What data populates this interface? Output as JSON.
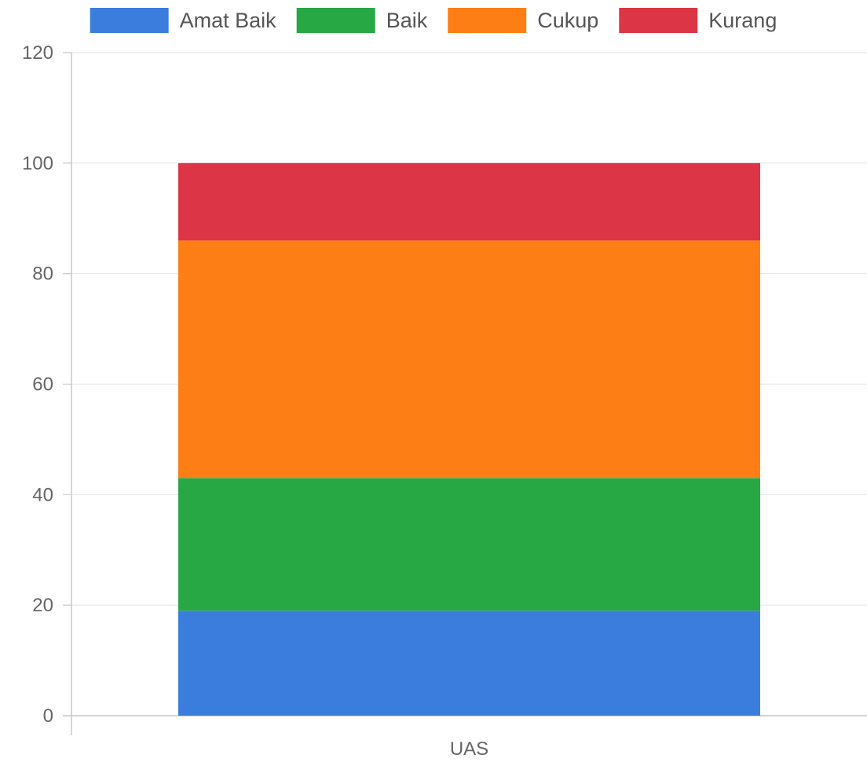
{
  "chart_data": {
    "type": "bar",
    "stacked": true,
    "categories": [
      "UAS"
    ],
    "series": [
      {
        "name": "Amat Baik",
        "values": [
          19
        ],
        "color": "#3b7ddd"
      },
      {
        "name": "Baik",
        "values": [
          24
        ],
        "color": "#28a745"
      },
      {
        "name": "Cukup",
        "values": [
          43
        ],
        "color": "#fd7e14"
      },
      {
        "name": "Kurang",
        "values": [
          14
        ],
        "color": "#dc3545"
      }
    ],
    "ylim": [
      0,
      120
    ],
    "yticks": [
      0,
      20,
      40,
      60,
      80,
      100,
      120
    ],
    "grid": true,
    "legend_position": "top"
  }
}
